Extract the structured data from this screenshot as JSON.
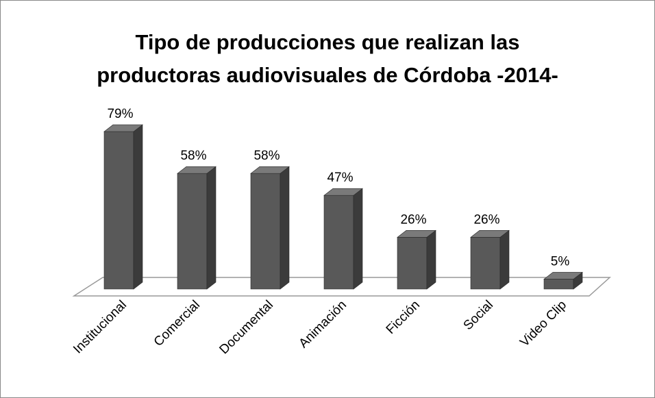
{
  "chart_data": {
    "type": "bar3d",
    "title": [
      "Tipo de producciones que realizan las",
      "productoras audiovisuales de Córdoba -2014-"
    ],
    "categories": [
      "Institucional",
      "Comercial",
      "Documental",
      "Animación",
      "Ficción",
      "Social",
      "Video Clip"
    ],
    "values": [
      79,
      58,
      58,
      47,
      26,
      26,
      5
    ],
    "value_labels": [
      "79%",
      "58%",
      "58%",
      "47%",
      "26%",
      "26%",
      "5%"
    ],
    "color": "#595959"
  }
}
